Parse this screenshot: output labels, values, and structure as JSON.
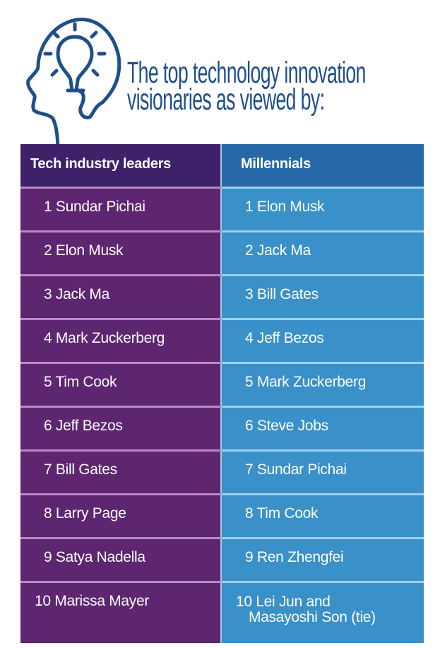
{
  "title": {
    "line1": "The top technology innovation",
    "line2": "visionaries as viewed by:"
  },
  "icon": "head-lightbulb-icon",
  "colors": {
    "title": "#1f4f8a",
    "leaders_header": "#3f2169",
    "leaders_cell": "#5e2570",
    "millennials_header": "#2668a8",
    "millennials_cell": "#3a90c8"
  },
  "table": {
    "headers": [
      "Tech industry leaders",
      "Millennials"
    ],
    "rows": [
      [
        "1 Sundar Pichai",
        "1 Elon Musk"
      ],
      [
        "2 Elon Musk",
        "2 Jack Ma"
      ],
      [
        "3 Jack Ma",
        "3 Bill Gates"
      ],
      [
        "4 Mark Zuckerberg",
        "4 Jeff Bezos"
      ],
      [
        "5 Tim Cook",
        "5 Mark Zuckerberg"
      ],
      [
        "6 Jeff Bezos",
        "6 Steve Jobs"
      ],
      [
        "7 Bill Gates",
        "7 Sundar Pichai"
      ],
      [
        "8 Larry Page",
        "8 Tim Cook"
      ],
      [
        "9 Satya Nadella",
        "9 Ren Zhengfei"
      ],
      [
        "10 Marissa Mayer",
        "10 Lei Jun and"
      ]
    ],
    "last_row_continuation": "Masayoshi Son (tie)"
  }
}
